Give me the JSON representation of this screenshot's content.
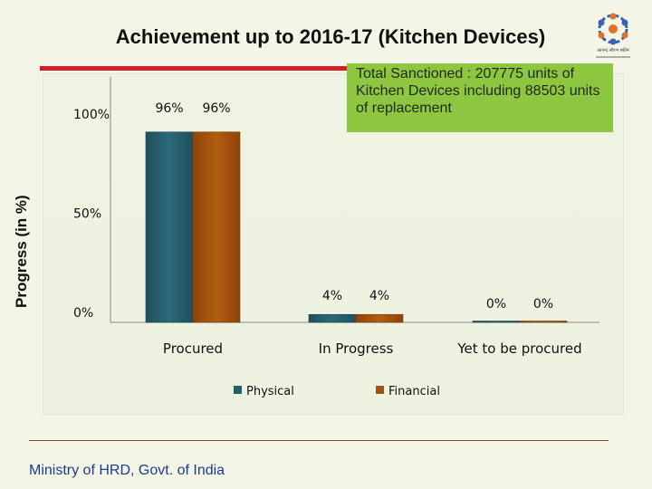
{
  "slide": {
    "title": "Achievement up to 2016-17 (Kitchen Devices)",
    "note": "Total Sanctioned : 207775 units of Kitchen Devices including 88503 units of replacement",
    "footer": "Ministry of HRD, Govt. of India",
    "logo_text": "आनन्द सौरभ स्कीम"
  },
  "colors": {
    "physical": "#255e6e",
    "financial": "#a3530e",
    "note_bg": "#8ec641",
    "accent_line": "#d21f26"
  },
  "chart_data": {
    "type": "bar",
    "title": "",
    "ylabel": "Progress (in %)",
    "xlabel": "",
    "categories": [
      "Procured",
      "In Progress",
      "Yet to be procured"
    ],
    "series": [
      {
        "name": "Physical",
        "values": [
          96,
          4,
          0
        ],
        "labels": [
          "96%",
          "4%",
          "0%"
        ]
      },
      {
        "name": "Financial",
        "values": [
          96,
          4,
          0
        ],
        "labels": [
          "96%",
          "4%",
          "0%"
        ]
      }
    ],
    "yticks": [
      "0%",
      "50%",
      "100%"
    ],
    "ytick_values": [
      0,
      50,
      100
    ],
    "ylim": [
      0,
      100
    ],
    "grid": false,
    "legend": "bottom"
  }
}
